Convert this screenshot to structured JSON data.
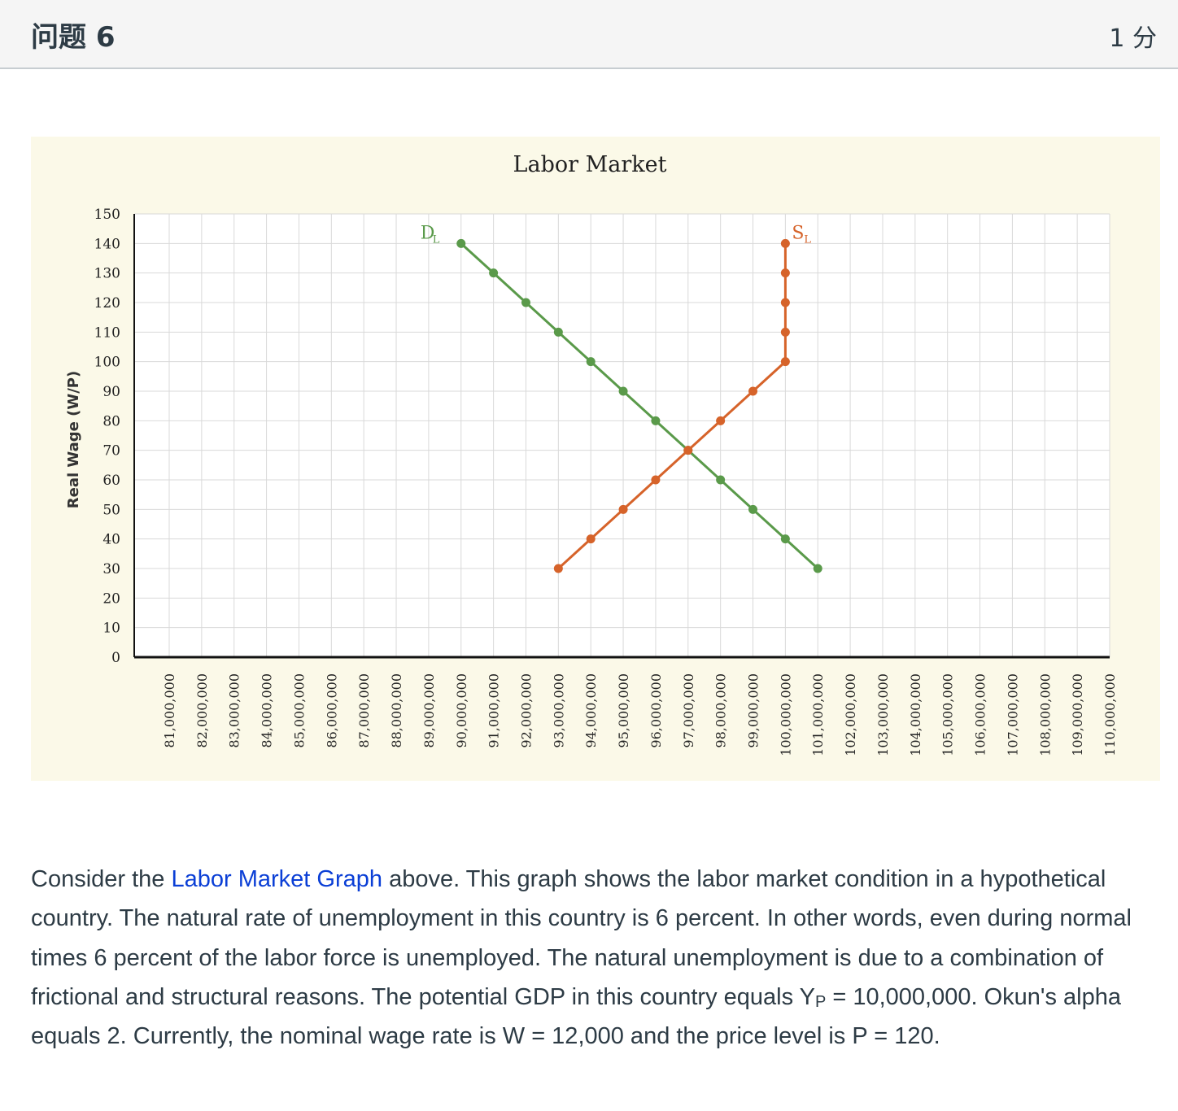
{
  "header": {
    "title": "问题 6",
    "points": "1 分"
  },
  "chart_data": {
    "type": "line",
    "title": "Labor Market",
    "xlabel": "",
    "ylabel": "Real Wage (W/P)",
    "ylim": [
      0,
      150
    ],
    "xlim": [
      81000000,
      110000000
    ],
    "y_ticks": [
      0,
      10,
      20,
      30,
      40,
      50,
      60,
      70,
      80,
      90,
      100,
      110,
      120,
      130,
      140,
      150
    ],
    "x_tick_labels": [
      "81,000,000",
      "82,000,000",
      "83,000,000",
      "84,000,000",
      "85,000,000",
      "86,000,000",
      "87,000,000",
      "88,000,000",
      "89,000,000",
      "90,000,000",
      "91,000,000",
      "92,000,000",
      "93,000,000",
      "94,000,000",
      "95,000,000",
      "96,000,000",
      "97,000,000",
      "98,000,000",
      "99,000,000",
      "100,000,000",
      "101,000,000",
      "102,000,000",
      "103,000,000",
      "104,000,000",
      "105,000,000",
      "106,000,000",
      "107,000,000",
      "108,000,000",
      "109,000,000",
      "110,000,000"
    ],
    "grid": true,
    "background": "#fbf9e8",
    "series": [
      {
        "name": "D",
        "sub": "L",
        "color": "#5a9a4a",
        "x": [
          90000000,
          91000000,
          92000000,
          93000000,
          94000000,
          95000000,
          96000000,
          97000000,
          98000000,
          99000000,
          100000000,
          101000000
        ],
        "y": [
          140,
          130,
          120,
          110,
          100,
          90,
          80,
          70,
          60,
          50,
          40,
          30
        ]
      },
      {
        "name": "S",
        "sub": "L",
        "color": "#d6632a",
        "x": [
          93000000,
          94000000,
          95000000,
          96000000,
          97000000,
          98000000,
          99000000,
          100000000,
          100000000,
          100000000,
          100000000,
          100000000
        ],
        "y": [
          30,
          40,
          50,
          60,
          70,
          80,
          90,
          100,
          110,
          120,
          130,
          140
        ]
      }
    ]
  },
  "question": {
    "p1": "Consider the ",
    "link": "Labor Market Graph",
    "p2": " above. This graph shows the labor market condition in a hypothetical country. The natural rate of unemployment in this country is 6 percent. In other words, even during normal times 6 percent of the labor force is unemployed. The natural unemployment is  due to a combination of frictional and structural reasons. The potential GDP in this country equals Y",
    "sub": "P",
    "p3": " = 10,000,000. Okun's alpha equals 2. Currently, the nominal wage rate is W = 12,000 and the price level is P = 120."
  }
}
